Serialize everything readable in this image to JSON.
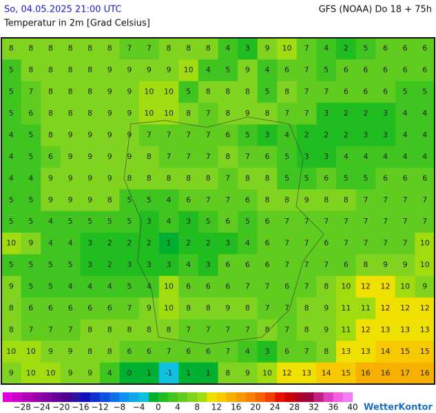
{
  "header": {
    "datetime": "So, 04.05.2025 21:00 UTC",
    "model": "GFS (NOAA) Do 18 + 75h",
    "subtitle": "Temperatur in 2m [Grad Celsius]"
  },
  "map": {
    "grid": [
      [
        8,
        8,
        8,
        8,
        8,
        8,
        7,
        7,
        8,
        8,
        8,
        4,
        3,
        9,
        10,
        7,
        4,
        2,
        5,
        6,
        6,
        6
      ],
      [
        5,
        8,
        8,
        8,
        8,
        9,
        9,
        9,
        9,
        10,
        4,
        5,
        9,
        4,
        6,
        7,
        5,
        6,
        6,
        6,
        6,
        6
      ],
      [
        5,
        7,
        8,
        8,
        8,
        9,
        9,
        10,
        10,
        5,
        8,
        8,
        8,
        5,
        8,
        7,
        7,
        6,
        6,
        6,
        5,
        5
      ],
      [
        5,
        6,
        8,
        8,
        8,
        9,
        9,
        10,
        10,
        8,
        7,
        8,
        9,
        8,
        7,
        7,
        3,
        2,
        2,
        3,
        4,
        4
      ],
      [
        4,
        5,
        8,
        9,
        9,
        9,
        9,
        7,
        7,
        7,
        7,
        6,
        5,
        3,
        4,
        2,
        2,
        2,
        3,
        3,
        4,
        4
      ],
      [
        4,
        5,
        6,
        9,
        9,
        9,
        9,
        8,
        7,
        7,
        7,
        8,
        7,
        6,
        5,
        3,
        3,
        4,
        4,
        4,
        4,
        4
      ],
      [
        4,
        4,
        9,
        9,
        9,
        9,
        8,
        8,
        8,
        8,
        8,
        7,
        8,
        8,
        5,
        5,
        6,
        5,
        5,
        6,
        6,
        6
      ],
      [
        5,
        5,
        9,
        9,
        9,
        8,
        5,
        5,
        4,
        6,
        7,
        7,
        6,
        8,
        8,
        9,
        8,
        8,
        7,
        7,
        7,
        7
      ],
      [
        5,
        5,
        4,
        5,
        5,
        5,
        5,
        3,
        4,
        3,
        5,
        6,
        5,
        6,
        7,
        7,
        7,
        7,
        7,
        7,
        7,
        7
      ],
      [
        10,
        9,
        4,
        4,
        3,
        2,
        2,
        2,
        1,
        2,
        2,
        3,
        4,
        6,
        7,
        7,
        6,
        7,
        7,
        7,
        7,
        10
      ],
      [
        5,
        5,
        5,
        5,
        3,
        2,
        3,
        3,
        3,
        4,
        3,
        6,
        6,
        6,
        7,
        7,
        7,
        6,
        8,
        9,
        9,
        10
      ],
      [
        9,
        5,
        5,
        4,
        4,
        4,
        5,
        4,
        10,
        6,
        6,
        6,
        7,
        7,
        6,
        7,
        8,
        10,
        12,
        12,
        10,
        9
      ],
      [
        8,
        6,
        6,
        6,
        6,
        6,
        7,
        9,
        10,
        8,
        8,
        9,
        8,
        7,
        7,
        8,
        9,
        11,
        11,
        12,
        12,
        12
      ],
      [
        8,
        7,
        7,
        7,
        8,
        8,
        8,
        8,
        8,
        7,
        7,
        7,
        7,
        8,
        7,
        8,
        9,
        11,
        12,
        13,
        13,
        13
      ],
      [
        10,
        10,
        9,
        9,
        8,
        8,
        6,
        6,
        7,
        6,
        6,
        7,
        4,
        3,
        6,
        7,
        8,
        13,
        13,
        14,
        15,
        15
      ],
      [
        9,
        10,
        10,
        9,
        9,
        4,
        0,
        1,
        -1,
        1,
        1,
        8,
        9,
        10,
        12,
        13,
        14,
        15,
        16,
        16,
        17,
        16
      ]
    ]
  },
  "scale": {
    "ticks": [
      {
        "value": -28,
        "label": "−28"
      },
      {
        "value": -24,
        "label": "−24"
      },
      {
        "value": -20,
        "label": "−20"
      },
      {
        "value": -16,
        "label": "−16"
      },
      {
        "value": -12,
        "label": "−12"
      },
      {
        "value": -8,
        "label": "−8"
      },
      {
        "value": -4,
        "label": "−4"
      },
      0,
      4,
      8,
      12,
      16,
      20,
      24,
      28,
      32,
      36,
      40
    ],
    "colors": [
      "#e000e0",
      "#c800c8",
      "#b000b8",
      "#9800a8",
      "#8000a0",
      "#680098",
      "#500090",
      "#3010a0",
      "#1010c0",
      "#1030d0",
      "#1050e0",
      "#1070e8",
      "#1090f0",
      "#10a8e8",
      "#10c0e0",
      "#00b030",
      "#20bc20",
      "#40c420",
      "#60cc20",
      "#80d420",
      "#a0dc10",
      "#f0e000",
      "#f8c800",
      "#f8b000",
      "#f89800",
      "#f88000",
      "#f86000",
      "#f04000",
      "#e81000",
      "#d00000",
      "#b00020",
      "#a00040",
      "#c02080",
      "#e040c0",
      "#f060e0",
      "#f080f0"
    ]
  },
  "footer": {
    "logo": "WetterKontor"
  }
}
